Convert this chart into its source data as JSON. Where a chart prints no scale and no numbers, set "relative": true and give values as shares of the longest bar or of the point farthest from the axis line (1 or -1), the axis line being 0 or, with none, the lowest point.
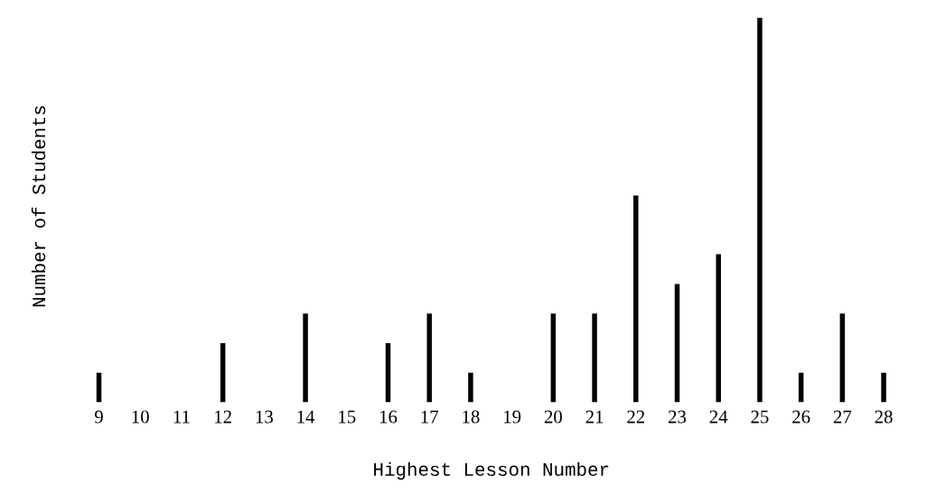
{
  "chart_data": {
    "type": "bar",
    "relative": true,
    "xlabel": "Highest Lesson Number",
    "ylabel": "Number of Students",
    "categories": [
      "9",
      "10",
      "11",
      "12",
      "13",
      "14",
      "15",
      "16",
      "17",
      "18",
      "19",
      "20",
      "21",
      "22",
      "23",
      "24",
      "25",
      "26",
      "27",
      "28"
    ],
    "values": [
      0.077,
      0,
      0,
      0.154,
      0,
      0.231,
      0,
      0.154,
      0.231,
      0.077,
      0,
      0.231,
      0.231,
      0.538,
      0.308,
      0.385,
      1,
      0.077,
      0.231,
      0.077
    ],
    "color": "#000000",
    "grid": false,
    "legend": false
  }
}
